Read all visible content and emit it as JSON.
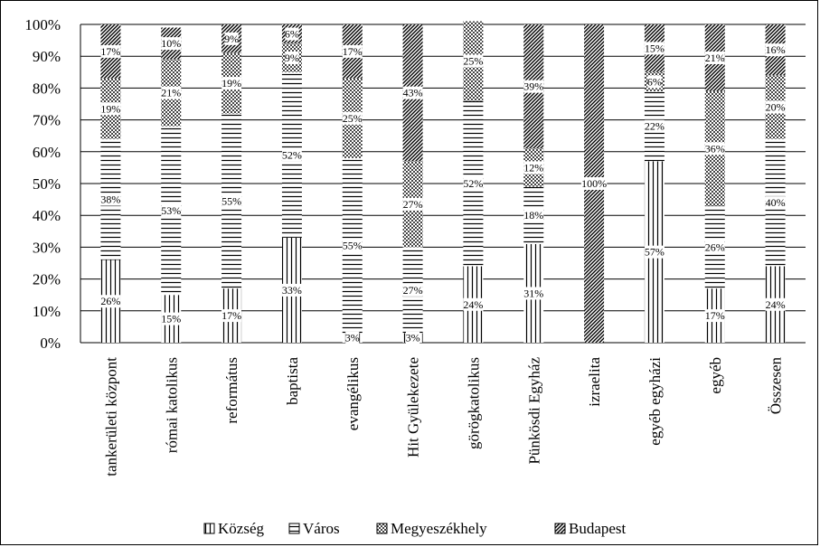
{
  "chart_data": {
    "type": "bar",
    "stacked": true,
    "percent": true,
    "title": "",
    "xlabel": "",
    "ylabel": "",
    "ylim": [
      0,
      100
    ],
    "yticks": [
      "0%",
      "10%",
      "20%",
      "30%",
      "40%",
      "50%",
      "60%",
      "70%",
      "80%",
      "90%",
      "100%"
    ],
    "grid": true,
    "legend_position": "bottom",
    "categories": [
      "tankerületi központ",
      "római katolikus",
      "református",
      "baptista",
      "evangélikus",
      "Hit Gyülekezete",
      "görögkatolikus",
      "Pünkösdi Egyház",
      "izraelita",
      "egyéb egyházi",
      "egyéb",
      "Összesen"
    ],
    "series": [
      {
        "name": "Község",
        "pattern": "vertical",
        "values": [
          26,
          15,
          17,
          33,
          3,
          3,
          24,
          31,
          0,
          57,
          17,
          24
        ],
        "labels": [
          "26%",
          "15%",
          "17%",
          "33%",
          "3%",
          "3%",
          "24%",
          "31%",
          "",
          "57%",
          "17%",
          "24%"
        ]
      },
      {
        "name": "Város",
        "pattern": "horizontal",
        "values": [
          38,
          53,
          55,
          52,
          55,
          27,
          52,
          18,
          0,
          22,
          26,
          40
        ],
        "labels": [
          "38%",
          "53%",
          "55%",
          "52%",
          "55%",
          "27%",
          "52%",
          "18%",
          "",
          "22%",
          "26%",
          "40%"
        ]
      },
      {
        "name": "Megyeszékhely",
        "pattern": "crosshatch",
        "values": [
          19,
          21,
          19,
          9,
          25,
          27,
          25,
          12,
          0,
          6,
          36,
          20
        ],
        "labels": [
          "19%",
          "21%",
          "19%",
          "9%",
          "25%",
          "27%",
          "25%",
          "12%",
          "",
          "6%",
          "36%",
          "20%"
        ]
      },
      {
        "name": "Budapest",
        "pattern": "diagonal",
        "values": [
          17,
          10,
          9,
          6,
          17,
          43,
          0,
          39,
          100,
          15,
          21,
          16
        ],
        "labels": [
          "17%",
          "10%",
          "9%",
          "6%",
          "17%",
          "43%",
          "",
          "39%",
          "100%",
          "15%",
          "21%",
          "16%"
        ]
      }
    ]
  }
}
